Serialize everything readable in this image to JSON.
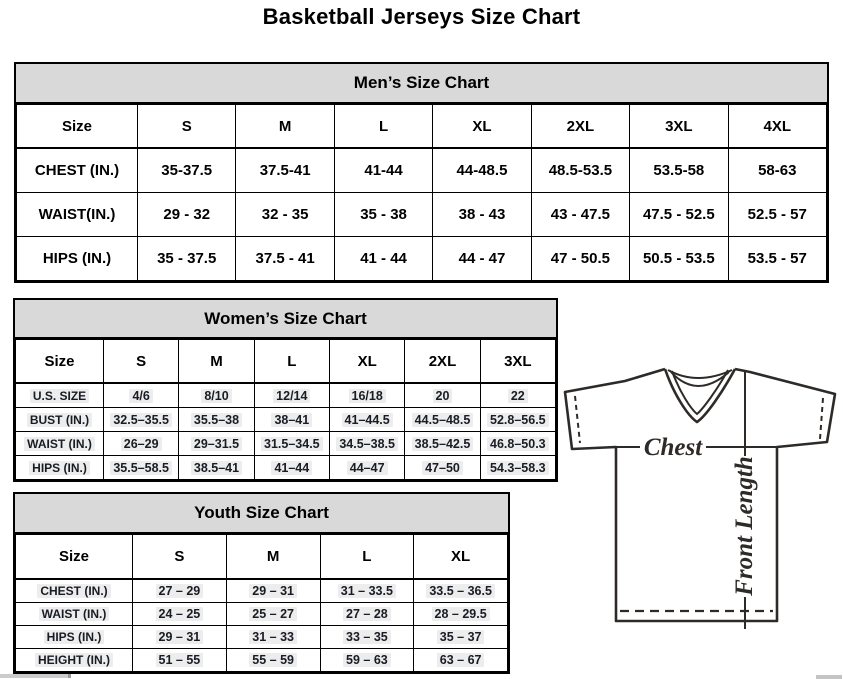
{
  "page_title": "Basketball Jerseys Size Chart",
  "mens": {
    "title": "Men’s Size Chart",
    "columns": [
      "Size",
      "S",
      "M",
      "L",
      "XL",
      "2XL",
      "3XL",
      "4XL"
    ],
    "rows": [
      {
        "label": "CHEST (IN.)",
        "values": [
          "35-37.5",
          "37.5-41",
          "41-44",
          "44-48.5",
          "48.5-53.5",
          "53.5-58",
          "58-63"
        ]
      },
      {
        "label": "WAIST(IN.)",
        "values": [
          "29 - 32",
          "32 - 35",
          "35 - 38",
          "38 - 43",
          "43 - 47.5",
          "47.5 - 52.5",
          "52.5 - 57"
        ]
      },
      {
        "label": "HIPS (IN.)",
        "values": [
          "35 - 37.5",
          "37.5 - 41",
          "41 - 44",
          "44 - 47",
          "47 - 50.5",
          "50.5 - 53.5",
          "53.5 - 57"
        ]
      }
    ]
  },
  "womens": {
    "title": "Women’s Size Chart",
    "columns": [
      "Size",
      "S",
      "M",
      "L",
      "XL",
      "2XL",
      "3XL"
    ],
    "rows": [
      {
        "label": "U.S. SIZE",
        "values": [
          "4/6",
          "8/10",
          "12/14",
          "16/18",
          "20",
          "22"
        ]
      },
      {
        "label": "BUST (IN.)",
        "values": [
          "32.5–35.5",
          "35.5–38",
          "38–41",
          "41–44.5",
          "44.5–48.5",
          "52.8–56.5"
        ]
      },
      {
        "label": "WAIST (IN.)",
        "values": [
          "26–29",
          "29–31.5",
          "31.5–34.5",
          "34.5–38.5",
          "38.5–42.5",
          "46.8–50.3"
        ]
      },
      {
        "label": "HIPS (IN.)",
        "values": [
          "35.5–58.5",
          "38.5–41",
          "41–44",
          "44–47",
          "47–50",
          "54.3–58.3"
        ]
      }
    ]
  },
  "youth": {
    "title": "Youth Size Chart",
    "columns": [
      "Size",
      "S",
      "M",
      "L",
      "XL"
    ],
    "rows": [
      {
        "label": "CHEST (IN.)",
        "values": [
          "27 – 29",
          "29 – 31",
          "31 – 33.5",
          "33.5 – 36.5"
        ]
      },
      {
        "label": "WAIST (IN.)",
        "values": [
          "24 – 25",
          "25 – 27",
          "27 – 28",
          "28 – 29.5"
        ]
      },
      {
        "label": "HIPS (IN.)",
        "values": [
          "29 – 31",
          "31 – 33",
          "33 – 35",
          "35 – 37"
        ]
      },
      {
        "label": "HEIGHT (IN.)",
        "values": [
          "51 – 55",
          "55 – 59",
          "59 – 63",
          "63 – 67"
        ]
      }
    ]
  },
  "diagram": {
    "chest_label": "Chest",
    "front_length_label": "Front Length"
  },
  "colors": {
    "table_header_bg": "#d9d9d9",
    "border": "#000000",
    "diagram_stroke": "#2e2a28",
    "value_text": "#181c24"
  }
}
